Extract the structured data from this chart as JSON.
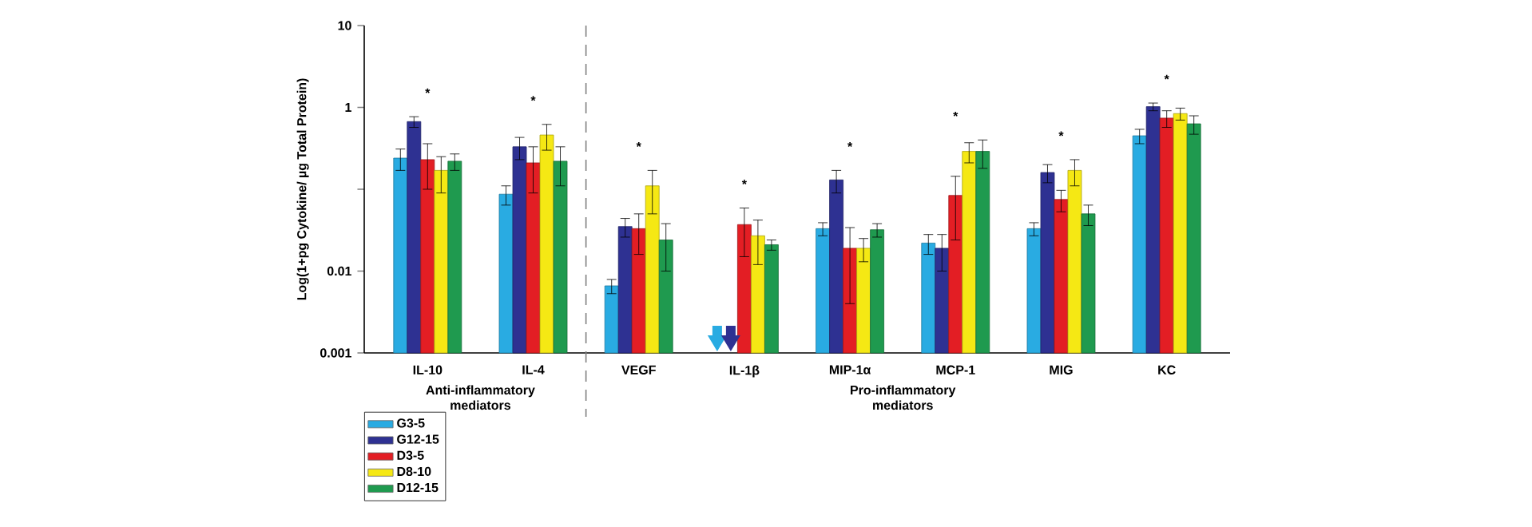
{
  "chart_data": {
    "type": "bar",
    "ylabel": "Log(1+pg Cytokine/ µg Total Protein)",
    "categories": [
      "IL-10",
      "IL-4",
      "VEGF",
      "IL-1β",
      "MIP-1α",
      "MCP-1",
      "MIG",
      "KC"
    ],
    "series": [
      {
        "name": "G3-5",
        "color": "#29abe2",
        "values": [
          0.24,
          0.087,
          0.0066,
          null,
          0.033,
          0.022,
          0.033,
          0.45
        ],
        "errors": [
          0.07,
          0.023,
          0.0013,
          null,
          0.006,
          0.006,
          0.006,
          0.09
        ]
      },
      {
        "name": "G12-15",
        "color": "#2e3192",
        "values": [
          0.67,
          0.33,
          0.035,
          null,
          0.13,
          0.019,
          0.16,
          1.02
        ],
        "errors": [
          0.1,
          0.1,
          0.009,
          null,
          0.04,
          0.009,
          0.04,
          0.11
        ]
      },
      {
        "name": "D3-5",
        "color": "#e31e24",
        "values": [
          0.23,
          0.21,
          0.033,
          0.037,
          0.019,
          0.084,
          0.075,
          0.74
        ],
        "errors": [
          0.13,
          0.12,
          0.017,
          0.022,
          0.015,
          0.06,
          0.022,
          0.17
        ]
      },
      {
        "name": "D8-10",
        "color": "#f5e814",
        "values": [
          0.17,
          0.46,
          0.11,
          0.027,
          0.019,
          0.29,
          0.17,
          0.84
        ],
        "errors": [
          0.08,
          0.16,
          0.06,
          0.015,
          0.006,
          0.08,
          0.06,
          0.14
        ]
      },
      {
        "name": "D12-15",
        "color": "#1f9a4f",
        "values": [
          0.22,
          0.22,
          0.024,
          0.021,
          0.032,
          0.29,
          0.05,
          0.63
        ],
        "errors": [
          0.05,
          0.11,
          0.014,
          0.003,
          0.006,
          0.11,
          0.014,
          0.16
        ]
      }
    ],
    "log": true,
    "ylim": [
      0.001,
      10
    ],
    "yticks": [
      0.001,
      0.01,
      {
        "value": 0.1,
        "label": null
      },
      1,
      10
    ],
    "legend": "bottom left",
    "annotations": [
      "Anti-inflammatory mediators",
      "Pro-inflammatory mediators",
      "*",
      "*",
      "*",
      "*",
      "*",
      "*",
      "*",
      "*"
    ]
  }
}
